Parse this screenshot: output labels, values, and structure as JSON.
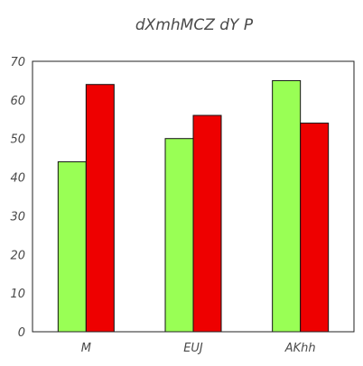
{
  "chart_data": {
    "type": "bar",
    "title": "dXmhMCZ dY   P",
    "xlabel": "",
    "ylabel": "",
    "categories": [
      "M",
      "EUJ",
      "AKhh"
    ],
    "series": [
      {
        "values": [
          44,
          50,
          65
        ],
        "color": "#99ff55"
      },
      {
        "values": [
          64,
          56,
          54
        ],
        "color": "#ee0000"
      }
    ],
    "ylim": [
      0,
      70
    ],
    "yticks": [
      0,
      10,
      20,
      30,
      40,
      50,
      60,
      70
    ],
    "grid": false,
    "legend": "none"
  }
}
